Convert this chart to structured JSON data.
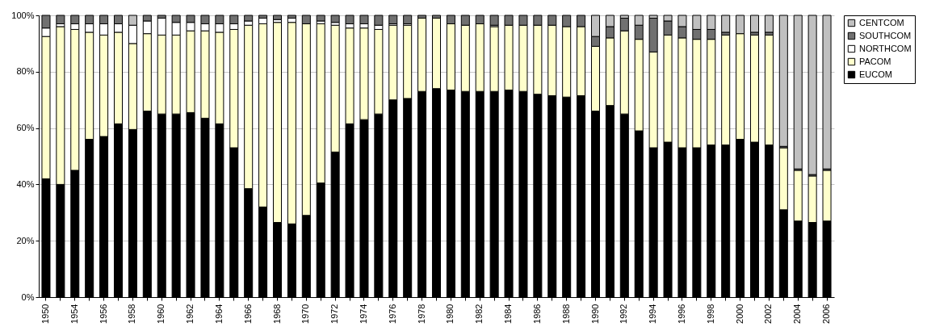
{
  "chart_data": {
    "type": "bar",
    "stacked": true,
    "categories": [
      "1950",
      null,
      "1954",
      null,
      "1956",
      null,
      "1958",
      null,
      "1960",
      null,
      "1962",
      null,
      "1964",
      null,
      "1966",
      null,
      "1968",
      null,
      "1970",
      null,
      "1972",
      null,
      "1974",
      null,
      "1976",
      null,
      "1978",
      null,
      "1980",
      null,
      "1982",
      null,
      "1984",
      null,
      "1986",
      null,
      "1988",
      null,
      "1990",
      null,
      "1992",
      null,
      "1994",
      null,
      "1996",
      null,
      "1998",
      null,
      "2000",
      null,
      "2002",
      null,
      "2004",
      null,
      "2006"
    ],
    "series": [
      {
        "name": "EUCOM",
        "color": "#000000",
        "values": [
          42,
          40,
          45,
          56,
          57,
          61.5,
          59.5,
          66,
          65,
          65,
          65.5,
          63.5,
          61.5,
          53,
          38.5,
          32,
          26.5,
          26,
          29,
          40.5,
          51.5,
          61.5,
          63,
          65,
          70,
          70.5,
          73,
          74,
          73.5,
          73,
          73,
          73,
          73.5,
          73,
          72,
          71.5,
          71,
          71.5,
          66,
          68,
          65,
          59,
          53,
          55,
          53,
          53,
          54,
          54,
          56,
          55,
          54,
          31,
          27,
          26.5,
          27
        ]
      },
      {
        "name": "PACOM",
        "color": "#ffffcc",
        "values": [
          50.5,
          56,
          50,
          38,
          36,
          32.5,
          30.5,
          27.5,
          28,
          28,
          29,
          31,
          32.5,
          42,
          58,
          65,
          71,
          71.5,
          68,
          56.5,
          45,
          34,
          32.5,
          30,
          26.5,
          26,
          26,
          25,
          23.5,
          23.5,
          24,
          23,
          23,
          23.5,
          24.5,
          25,
          25,
          24.5,
          23,
          24,
          29.5,
          32.5,
          34,
          38,
          39,
          38.5,
          37.5,
          39,
          37.5,
          38,
          39,
          22,
          18,
          16.5,
          18
        ]
      },
      {
        "name": "NORTHCOM",
        "color": "#ffffff",
        "values": [
          3,
          1,
          2,
          3,
          4,
          3,
          6.5,
          4.5,
          6,
          4.5,
          3,
          2.5,
          3,
          2,
          1.5,
          2,
          1,
          1.5,
          0,
          1,
          1,
          1.5,
          1.5,
          1.5,
          0.5,
          0.5,
          0,
          0,
          0,
          0,
          0,
          0.5,
          0,
          0,
          0,
          0,
          0,
          0,
          0,
          0,
          0,
          0,
          0,
          0,
          0,
          0,
          0,
          0,
          0,
          0,
          0,
          0,
          0,
          0,
          0
        ]
      },
      {
        "name": "SOUTHCOM",
        "color": "#707070",
        "values": [
          4.5,
          3,
          3,
          3,
          3,
          3,
          0,
          2,
          1,
          2.5,
          2.5,
          3,
          3,
          3,
          2,
          1,
          1.5,
          1,
          3,
          2,
          2.5,
          3,
          3,
          3.5,
          3,
          3,
          1,
          1,
          3,
          3.5,
          3,
          3.5,
          3.5,
          3.5,
          3.5,
          3.5,
          4,
          4,
          3.5,
          4,
          4.5,
          5,
          12,
          5,
          4,
          3.5,
          3.5,
          1,
          0,
          1,
          1,
          0.5,
          0.5,
          0.5,
          0.5
        ]
      },
      {
        "name": "CENTCOM",
        "color": "#c0c0c0",
        "values": [
          0,
          0,
          0,
          0,
          0,
          0,
          3.5,
          0,
          0,
          0,
          0,
          0,
          0,
          0,
          0,
          0,
          0,
          0,
          0,
          0,
          0,
          0,
          0,
          0,
          0,
          0,
          0,
          0,
          0,
          0,
          0,
          0,
          0,
          0,
          0,
          0,
          0,
          0,
          7.5,
          4,
          1,
          3.5,
          1,
          2,
          4,
          5,
          5,
          6,
          6.5,
          6,
          6,
          46.5,
          54.5,
          56.5,
          54.5
        ]
      }
    ],
    "ylim": [
      0,
      100
    ],
    "yticks": [
      {
        "value": 0,
        "label": "0%"
      },
      {
        "value": 20,
        "label": "20%"
      },
      {
        "value": 40,
        "label": "40%"
      },
      {
        "value": 60,
        "label": "60%"
      },
      {
        "value": 80,
        "label": "80%"
      },
      {
        "value": 100,
        "label": "100%"
      }
    ],
    "grid": "y",
    "legend": "right"
  }
}
